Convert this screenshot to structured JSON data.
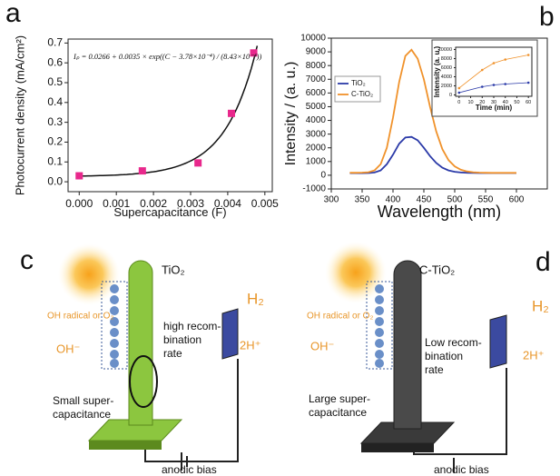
{
  "panel_labels": [
    "a",
    "b",
    "c",
    "d"
  ],
  "chart_data": [
    {
      "type": "scatter",
      "xlabel": "Supercapacitance (F)",
      "ylabel": "Photocurrent density (mA/cm²)",
      "x": [
        0,
        0.0017,
        0.0032,
        0.0041,
        0.0047
      ],
      "values": [
        0.03,
        0.055,
        0.095,
        0.345,
        0.65
      ],
      "color": "#e8288c",
      "line_color": "#111111",
      "equation": "Iₚ = 0.0266 + 0.0035 × exp((C − 3.78×10⁻⁴) / (8.43×10⁻⁴))",
      "fit": {
        "intercept": 0.0266,
        "scale": 0.0035,
        "shift": 0.000378,
        "width": 0.000843
      },
      "xlim": [
        -0.0003,
        0.0052
      ],
      "xticks": [
        {
          "value": 0,
          "label": "0.000"
        },
        {
          "value": 0.001,
          "label": "0.001"
        },
        {
          "value": 0.002,
          "label": "0.002"
        },
        {
          "value": 0.003,
          "label": "0.003"
        },
        {
          "value": 0.004,
          "label": "0.004"
        },
        {
          "value": 0.005,
          "label": "0.005"
        }
      ],
      "ylim": [
        -0.05,
        0.72
      ],
      "yticks": [
        {
          "value": 0,
          "label": "0.0"
        },
        0.1,
        0.2,
        0.3,
        0.4,
        0.5,
        0.6,
        0.7
      ]
    },
    {
      "type": "line",
      "xlabel": "Wavelength (nm)",
      "ylabel": "Intensity / (a. u.)",
      "x": [
        330,
        340,
        350,
        360,
        370,
        380,
        390,
        400,
        410,
        420,
        430,
        440,
        450,
        460,
        470,
        480,
        490,
        500,
        510,
        520,
        530,
        540,
        550,
        560,
        570,
        580,
        590,
        600
      ],
      "series": [
        {
          "name": "TiO₂",
          "color": "#2b3aa8",
          "values": [
            150,
            150,
            155,
            160,
            200,
            350,
            800,
            1500,
            2300,
            2750,
            2800,
            2550,
            2000,
            1400,
            900,
            550,
            350,
            250,
            200,
            180,
            170,
            160,
            160,
            160,
            160,
            160,
            160,
            160
          ]
        },
        {
          "name": "C-TiO₂",
          "color": "#f0922b",
          "values": [
            180,
            180,
            190,
            220,
            350,
            800,
            2000,
            4200,
            6800,
            8700,
            9150,
            8500,
            7000,
            5000,
            3200,
            1900,
            1100,
            650,
            400,
            280,
            220,
            190,
            180,
            170,
            170,
            170,
            170,
            170
          ]
        }
      ],
      "legend": "upper left",
      "xlim": [
        300,
        650
      ],
      "xticks": [
        300,
        350,
        400,
        450,
        500,
        550,
        600
      ],
      "ylim": [
        -1000,
        10000
      ],
      "yticks": [
        -1000,
        0,
        1000,
        2000,
        3000,
        4000,
        5000,
        6000,
        7000,
        8000,
        9000,
        10000
      ]
    },
    {
      "type": "line",
      "xlabel": "Time (min)",
      "ylabel": "Intensity (a. u.)",
      "x": [
        0,
        20,
        30,
        40,
        60
      ],
      "series": [
        {
          "color": "#2b3aa8",
          "values": [
            500,
            1800,
            2200,
            2400,
            2700
          ]
        },
        {
          "color": "#f0922b",
          "values": [
            1500,
            5500,
            7000,
            7800,
            8800
          ]
        }
      ],
      "xlim": [
        -3,
        63
      ],
      "xticks": [
        0,
        10,
        20,
        30,
        40,
        50,
        60
      ],
      "ylim": [
        -300,
        10500
      ],
      "yticks": [
        0,
        2000,
        4000,
        6000,
        8000,
        10000
      ]
    }
  ],
  "diagrams": [
    {
      "material": "TiO₂",
      "species": "OH radical or O₂",
      "ion": "OH⁻",
      "recombination": [
        "high recom-",
        "bination",
        "rate"
      ],
      "capacitance": [
        "Small super-",
        "capacitance"
      ],
      "gas": "H₂",
      "proton": "2H⁺",
      "bias": "anodic bias"
    },
    {
      "material": "C-TiO₂",
      "species": "OH radical or O₂",
      "ion": "OH⁻",
      "recombination": [
        "Low recom-",
        "bination",
        "rate"
      ],
      "capacitance": [
        "Large super-",
        "capacitance"
      ],
      "gas": "H₂",
      "proton": "2H⁺",
      "bias": "anodic bias"
    }
  ]
}
